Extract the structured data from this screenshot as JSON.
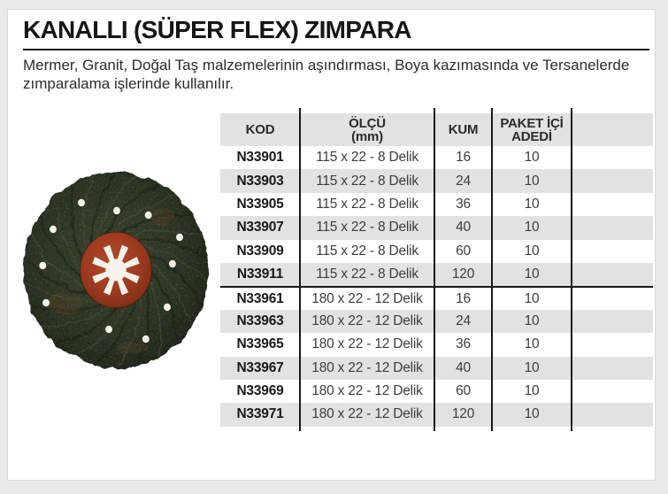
{
  "page": {
    "title": "KANALLI (SÜPER FLEX) ZIMPARA",
    "description": "Mermer, Granit, Doğal Taş malzemelerinin aşındırması, Boya kazımasında ve Tersanelerde zımparalama işlerinde kullanılır."
  },
  "product_image": {
    "name": "kanalli-super-flex-zimpara-disc-photo",
    "palette": {
      "abrasive_dark": "#20271b",
      "abrasive_mid": "#2e3626",
      "abrasive_light": "#4a5239",
      "groove_dark": "#181f14",
      "hub_red": "#9d3a20",
      "hub_red_light": "#b34a29",
      "hub_red_dark": "#7c2e16",
      "cutout_white": "#f4f2ea",
      "blotch_brown": "#7a4a28"
    }
  },
  "table": {
    "columns": [
      {
        "label": "KOD",
        "sublabel": ""
      },
      {
        "label": "ÖLÇÜ",
        "sublabel": "(mm)"
      },
      {
        "label": "KUM",
        "sublabel": ""
      },
      {
        "label": "PAKET İÇİ",
        "sublabel": "ADEDİ"
      },
      {
        "label": "",
        "sublabel": ""
      }
    ],
    "groups": [
      {
        "rows": [
          [
            "N33901",
            "115 x 22 - 8 Delik",
            "16",
            "10"
          ],
          [
            "N33903",
            "115 x 22 - 8 Delik",
            "24",
            "10"
          ],
          [
            "N33905",
            "115 x 22 - 8 Delik",
            "36",
            "10"
          ],
          [
            "N33907",
            "115 x 22 - 8 Delik",
            "40",
            "10"
          ],
          [
            "N33909",
            "115 x 22 - 8 Delik",
            "60",
            "10"
          ],
          [
            "N33911",
            "115 x 22 - 8 Delik",
            "120",
            "10"
          ]
        ]
      },
      {
        "rows": [
          [
            "N33961",
            "180 x 22 - 12 Delik",
            "16",
            "10"
          ],
          [
            "N33963",
            "180 x 22 - 12 Delik",
            "24",
            "10"
          ],
          [
            "N33965",
            "180 x 22 - 12 Delik",
            "36",
            "10"
          ],
          [
            "N33967",
            "180 x 22 - 12 Delik",
            "40",
            "10"
          ],
          [
            "N33969",
            "180 x 22 - 12 Delik",
            "60",
            "10"
          ],
          [
            "N33971",
            "180 x 22 - 12 Delik",
            "120",
            "10"
          ]
        ]
      }
    ]
  }
}
